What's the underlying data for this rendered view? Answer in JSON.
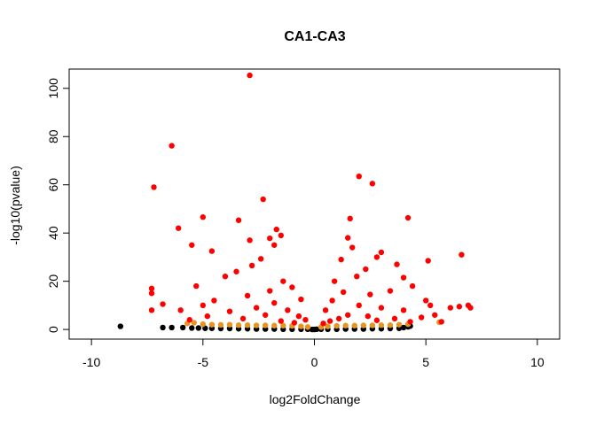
{
  "chart_data": {
    "type": "scatter",
    "title": "CA1-CA3",
    "xlabel": "log2FoldChange",
    "ylabel": "-log10(pvalue)",
    "xlim": [
      -11,
      11
    ],
    "ylim": [
      -4,
      108
    ],
    "x_ticks": [
      -10,
      -5,
      0,
      5,
      10
    ],
    "y_ticks": [
      0,
      20,
      40,
      60,
      80,
      100
    ],
    "grid": false,
    "legend": "none",
    "colors": {
      "not_significant": "#000000",
      "moderate": "#e69520",
      "significant": "#ff0000"
    },
    "series": [
      {
        "color_key": "not_significant",
        "points": [
          [
            -8.7,
            1.3
          ],
          [
            -6.8,
            0.8
          ],
          [
            -6.4,
            0.8
          ],
          [
            -5.9,
            0.8
          ],
          [
            -5.5,
            0.6
          ],
          [
            -5.2,
            0.6
          ],
          [
            -4.9,
            0.5
          ],
          [
            -4.6,
            0.5
          ],
          [
            -4.2,
            0.4
          ],
          [
            -3.8,
            0.4
          ],
          [
            -3.4,
            0.3
          ],
          [
            -3.0,
            0.3
          ],
          [
            -2.6,
            0.2
          ],
          [
            -2.2,
            0.2
          ],
          [
            -1.8,
            0.2
          ],
          [
            -1.4,
            0.1
          ],
          [
            -1.0,
            0.1
          ],
          [
            -0.6,
            0.1
          ],
          [
            -0.3,
            0.1
          ],
          [
            -0.1,
            0.0
          ],
          [
            0.0,
            0.0
          ],
          [
            0.1,
            0.1
          ],
          [
            0.3,
            0.1
          ],
          [
            0.6,
            0.1
          ],
          [
            1.0,
            0.1
          ],
          [
            1.4,
            0.2
          ],
          [
            1.8,
            0.2
          ],
          [
            2.2,
            0.2
          ],
          [
            2.6,
            0.3
          ],
          [
            3.0,
            0.3
          ],
          [
            3.4,
            0.4
          ],
          [
            3.8,
            0.5
          ],
          [
            4.0,
            0.8
          ],
          [
            4.2,
            1.1
          ],
          [
            4.3,
            1.4
          ]
        ]
      },
      {
        "color_key": "moderate",
        "points": [
          [
            -5.7,
            2.5
          ],
          [
            -5.4,
            2.8
          ],
          [
            -5.0,
            2.2
          ],
          [
            -4.6,
            2.0
          ],
          [
            -4.2,
            1.9
          ],
          [
            -3.8,
            2.0
          ],
          [
            -3.4,
            1.8
          ],
          [
            -3.0,
            1.8
          ],
          [
            -2.6,
            1.7
          ],
          [
            -2.2,
            1.7
          ],
          [
            -1.8,
            1.6
          ],
          [
            -1.4,
            1.6
          ],
          [
            -1.0,
            1.5
          ],
          [
            -0.6,
            1.3
          ],
          [
            -0.3,
            1.0
          ],
          [
            0.3,
            1.0
          ],
          [
            0.6,
            1.3
          ],
          [
            1.0,
            1.5
          ],
          [
            1.4,
            1.6
          ],
          [
            1.8,
            1.6
          ],
          [
            2.2,
            1.7
          ],
          [
            2.6,
            1.7
          ],
          [
            3.0,
            1.8
          ],
          [
            3.4,
            1.8
          ],
          [
            3.8,
            2.0
          ],
          [
            4.2,
            2.2
          ],
          [
            5.6,
            3.0
          ]
        ]
      },
      {
        "color_key": "significant",
        "points": [
          [
            -2.9,
            105.4
          ],
          [
            -6.4,
            76.2
          ],
          [
            -7.2,
            59.0
          ],
          [
            -2.3,
            54.0
          ],
          [
            -5.0,
            46.6
          ],
          [
            -3.4,
            45.3
          ],
          [
            -6.1,
            42.0
          ],
          [
            -1.7,
            41.5
          ],
          [
            -1.5,
            39.0
          ],
          [
            -2.0,
            37.8
          ],
          [
            -2.9,
            37.0
          ],
          [
            -5.5,
            35.0
          ],
          [
            -1.8,
            35.0
          ],
          [
            -4.6,
            32.5
          ],
          [
            -2.4,
            29.3
          ],
          [
            -2.8,
            26.5
          ],
          [
            -3.5,
            24.0
          ],
          [
            -4.0,
            22.0
          ],
          [
            -5.3,
            18.0
          ],
          [
            -7.3,
            17.0
          ],
          [
            -7.3,
            15.0
          ],
          [
            -6.8,
            10.5
          ],
          [
            -7.3,
            8.0
          ],
          [
            -6.0,
            8.0
          ],
          [
            -5.0,
            10.0
          ],
          [
            -4.5,
            12.0
          ],
          [
            -3.0,
            14.0
          ],
          [
            -2.0,
            16.0
          ],
          [
            -1.4,
            20.0
          ],
          [
            -1.0,
            17.5
          ],
          [
            -0.6,
            12.5
          ],
          [
            -1.8,
            11.0
          ],
          [
            -2.6,
            9.0
          ],
          [
            -3.8,
            7.5
          ],
          [
            -4.8,
            5.5
          ],
          [
            -5.6,
            4.0
          ],
          [
            -1.2,
            8.0
          ],
          [
            -0.7,
            5.5
          ],
          [
            -0.4,
            4.0
          ],
          [
            -2.2,
            6.0
          ],
          [
            -3.2,
            4.5
          ],
          [
            -1.5,
            3.5
          ],
          [
            -0.9,
            2.8
          ],
          [
            2.0,
            63.5
          ],
          [
            2.6,
            60.5
          ],
          [
            1.6,
            46.0
          ],
          [
            4.2,
            46.3
          ],
          [
            1.5,
            38.0
          ],
          [
            1.7,
            34.0
          ],
          [
            3.0,
            32.0
          ],
          [
            2.8,
            30.0
          ],
          [
            1.2,
            29.0
          ],
          [
            3.7,
            27.0
          ],
          [
            2.3,
            25.0
          ],
          [
            1.9,
            22.0
          ],
          [
            4.0,
            21.5
          ],
          [
            0.9,
            20.0
          ],
          [
            6.6,
            31.0
          ],
          [
            5.1,
            28.5
          ],
          [
            4.4,
            18.0
          ],
          [
            3.4,
            16.0
          ],
          [
            2.5,
            14.5
          ],
          [
            1.3,
            15.5
          ],
          [
            0.8,
            12.0
          ],
          [
            0.5,
            8.0
          ],
          [
            2.0,
            10.0
          ],
          [
            3.0,
            9.0
          ],
          [
            4.0,
            8.0
          ],
          [
            5.0,
            12.0
          ],
          [
            5.2,
            10.0
          ],
          [
            5.4,
            6.0
          ],
          [
            6.1,
            9.0
          ],
          [
            6.5,
            9.5
          ],
          [
            6.9,
            10.0
          ],
          [
            7.0,
            9.0
          ],
          [
            4.8,
            5.0
          ],
          [
            3.6,
            4.5
          ],
          [
            2.4,
            5.5
          ],
          [
            1.5,
            6.0
          ],
          [
            0.7,
            3.5
          ],
          [
            0.4,
            2.5
          ],
          [
            1.1,
            4.5
          ],
          [
            2.8,
            3.8
          ],
          [
            4.3,
            3.2
          ],
          [
            5.7,
            3.2
          ]
        ]
      }
    ]
  }
}
